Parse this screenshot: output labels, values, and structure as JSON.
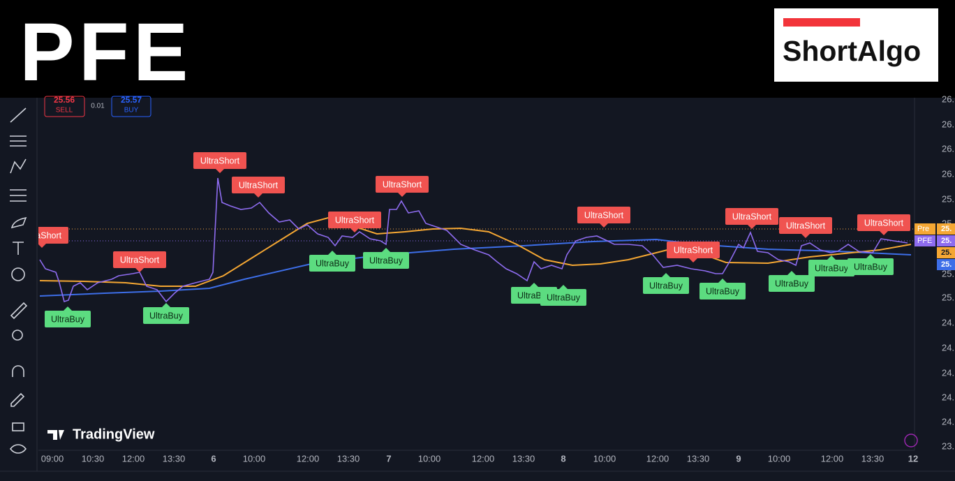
{
  "header": {
    "ticker": "PFE",
    "logo": "ShortAlgo"
  },
  "quote": {
    "sell_price": "25.56",
    "sell_label": "SELL",
    "spread": "0.01",
    "buy_price": "25.57",
    "buy_label": "BUY"
  },
  "price_axis": [
    "26.",
    "26.",
    "26.",
    "26.",
    "25.",
    "25.",
    "25.",
    "25.",
    "24.",
    "24.",
    "24.",
    "24.",
    "24.",
    "23."
  ],
  "price_tags": [
    {
      "name": "Pre",
      "price": "25."
    },
    {
      "name": "PFE",
      "price": "25."
    },
    {
      "price": "25."
    },
    {
      "price": "25."
    }
  ],
  "time_axis": [
    "09:00",
    "10:30",
    "12:00",
    "13:30",
    "6",
    "10:00",
    "12:00",
    "13:30",
    "7",
    "10:00",
    "12:00",
    "13:30",
    "8",
    "10:00",
    "12:00",
    "13:30",
    "9",
    "10:00",
    "12:00",
    "13:30",
    "12"
  ],
  "short_signals": [
    "UltraShort",
    "UltraShort",
    "UltraShort",
    "UltraShort",
    "UltraShort",
    "UltraShort",
    "UltraShort",
    "UltraShort",
    "UltraShort",
    "UltraShort",
    "UltraShort"
  ],
  "buy_signals": [
    "UltraBuy",
    "UltraBuy",
    "UltraBuy",
    "UltraBuy",
    "UltraBuy",
    "UltraBuy",
    "UltraBuy",
    "UltraBuy",
    "UltraBuy",
    "UltraBuy",
    "UltraBuy"
  ],
  "watermark": "TradingView"
}
